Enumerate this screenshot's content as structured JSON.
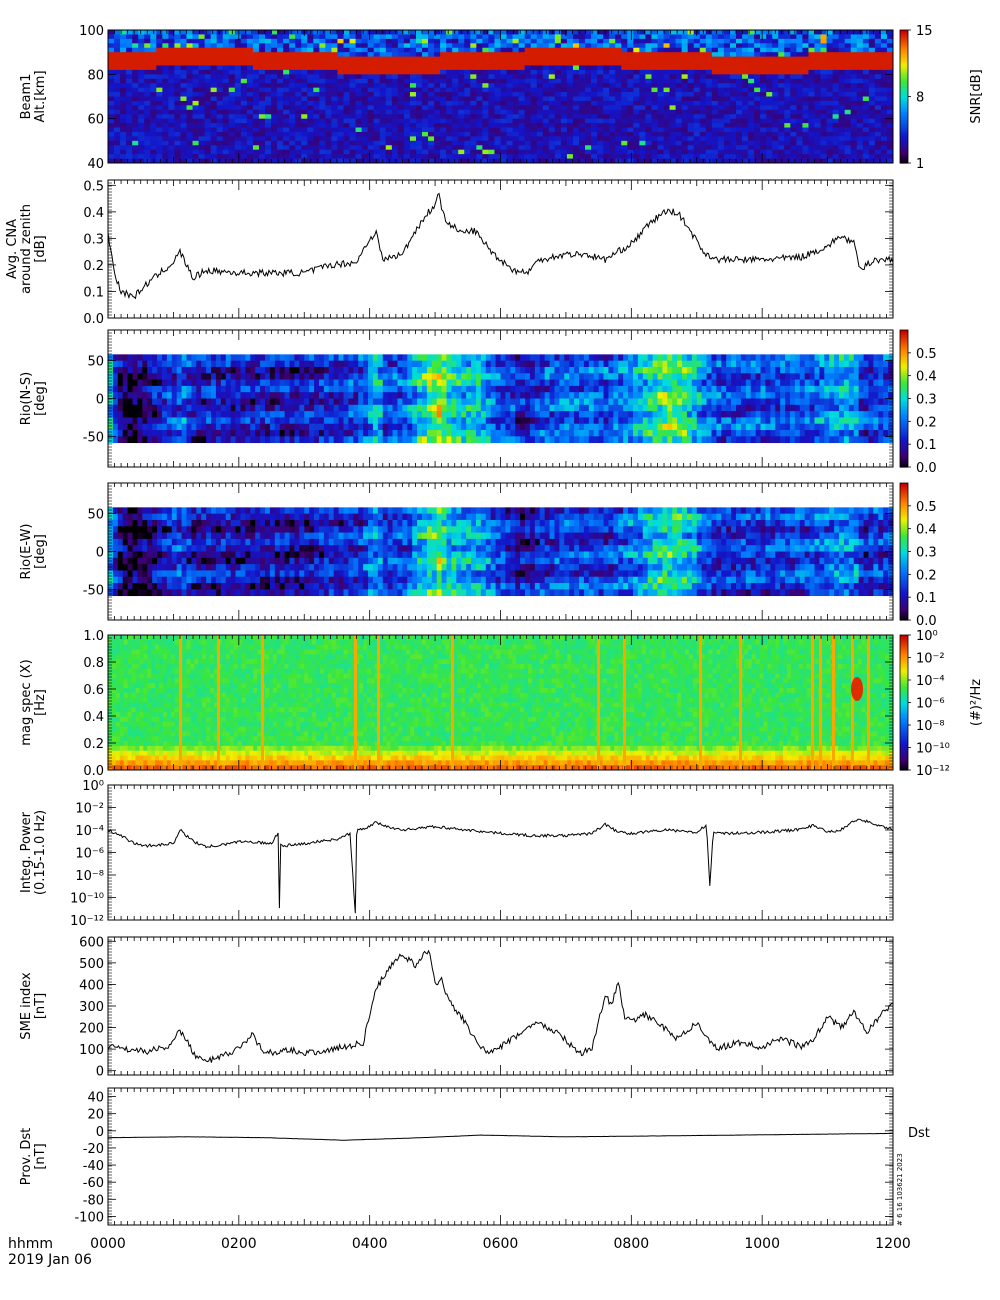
{
  "footer": {
    "xlabel": "hhmm",
    "date": "2019 Jan 06",
    "xticks": [
      "0000",
      "0200",
      "0400",
      "0600",
      "0800",
      "1000",
      "1200"
    ]
  },
  "stamp": "# 6 16 103621 2023",
  "colors": {
    "trace": "#000000",
    "mask": "#ffffff"
  },
  "chart_data": [
    {
      "id": "snr",
      "type": "heatmap",
      "ylabel": [
        "Beam1",
        "Alt.[km]"
      ],
      "yticks": [
        "100",
        "80",
        "60",
        "40"
      ],
      "ylim": [
        40,
        100
      ],
      "cbar_label": "SNR[dB]",
      "cbar_ticks": [
        "15",
        "8",
        "1"
      ],
      "crange": [
        1,
        15
      ],
      "layer_km": [
        82,
        90
      ]
    },
    {
      "id": "cna",
      "type": "line",
      "ylabel": [
        "Avg. CNA",
        "around zenith",
        "[dB]"
      ],
      "yticks": [
        "0.5",
        "0.4",
        "0.3",
        "0.2",
        "0.1",
        "0.0"
      ],
      "ylim": [
        0,
        0.52
      ],
      "x": [
        0,
        10,
        20,
        40,
        60,
        80,
        100,
        110,
        120,
        130,
        150,
        200,
        250,
        300,
        340,
        380,
        400,
        410,
        420,
        450,
        470,
        490,
        500,
        505,
        510,
        520,
        540,
        560,
        590,
        620,
        640,
        660,
        700,
        730,
        760,
        800,
        830,
        850,
        870,
        890,
        910,
        930,
        1000,
        1060,
        1100,
        1120,
        1140,
        1150,
        1170,
        1200
      ],
      "values": [
        0.32,
        0.17,
        0.1,
        0.08,
        0.13,
        0.17,
        0.21,
        0.25,
        0.2,
        0.15,
        0.18,
        0.17,
        0.17,
        0.17,
        0.2,
        0.21,
        0.3,
        0.32,
        0.22,
        0.24,
        0.33,
        0.4,
        0.42,
        0.49,
        0.4,
        0.36,
        0.32,
        0.33,
        0.24,
        0.18,
        0.17,
        0.22,
        0.24,
        0.24,
        0.22,
        0.28,
        0.36,
        0.4,
        0.4,
        0.33,
        0.25,
        0.22,
        0.22,
        0.23,
        0.27,
        0.31,
        0.28,
        0.18,
        0.22,
        0.22
      ]
    },
    {
      "id": "rio_ns",
      "type": "heatmap",
      "ylabel": [
        "Rio(N-S)",
        "[deg]"
      ],
      "yticks": [
        "50",
        "0",
        "-50"
      ],
      "ylim": [
        -90,
        90
      ],
      "cbar_ticks": [
        "0.5",
        "0.4",
        "0.3",
        "0.2",
        "0.1",
        "0.0"
      ],
      "crange": [
        0,
        0.6
      ]
    },
    {
      "id": "rio_ew",
      "type": "heatmap",
      "ylabel": [
        "Rio(E-W)",
        "[deg]"
      ],
      "yticks": [
        "50",
        "0",
        "-50"
      ],
      "ylim": [
        -90,
        90
      ],
      "cbar_ticks": [
        "0.5",
        "0.4",
        "0.3",
        "0.2",
        "0.1",
        "0.0"
      ],
      "crange": [
        0,
        0.6
      ]
    },
    {
      "id": "magspec",
      "type": "heatmap",
      "ylabel": [
        "mag spec (X)",
        "[Hz]"
      ],
      "yticks": [
        "1.0",
        "0.8",
        "0.6",
        "0.4",
        "0.2",
        "0.0"
      ],
      "ylim": [
        0,
        1
      ],
      "cbar_label": "(#)²/Hz",
      "cbar_ticks": [
        "10⁰",
        "10⁻²",
        "10⁻⁴",
        "10⁻⁶",
        "10⁻⁸",
        "10⁻¹⁰",
        "10⁻¹²"
      ],
      "crange": [
        -12,
        0
      ],
      "cscale": "log"
    },
    {
      "id": "power",
      "type": "line",
      "ylabel": [
        "Integ. Power",
        "(0.15-1.0 Hz)"
      ],
      "yticks": [
        "10⁰",
        "10⁻²",
        "10⁻⁴",
        "10⁻⁶",
        "10⁻⁸",
        "10⁻¹⁰",
        "10⁻¹²"
      ],
      "ylim": [
        -12,
        0
      ],
      "yscale": "log",
      "x": [
        0,
        20,
        40,
        60,
        100,
        110,
        130,
        150,
        180,
        200,
        250,
        260,
        262,
        264,
        270,
        300,
        350,
        370,
        378,
        380,
        382,
        400,
        410,
        420,
        450,
        500,
        550,
        600,
        650,
        700,
        740,
        760,
        780,
        800,
        850,
        900,
        915,
        920,
        925,
        950,
        1000,
        1050,
        1080,
        1100,
        1120,
        1140,
        1150,
        1170,
        1200
      ],
      "values": [
        -4,
        -4.5,
        -5.2,
        -5.4,
        -5.2,
        -4,
        -5,
        -5.5,
        -5.3,
        -5,
        -5.2,
        -4.2,
        -11,
        -5.3,
        -5.4,
        -5.2,
        -4.8,
        -4.3,
        -11.5,
        -4.5,
        -4,
        -3.7,
        -3.3,
        -3.6,
        -4,
        -3.7,
        -4,
        -4.3,
        -4.5,
        -4.5,
        -4.3,
        -3.5,
        -4.2,
        -4.3,
        -4,
        -4.2,
        -3.5,
        -9,
        -4.3,
        -4.3,
        -4.2,
        -4,
        -3.6,
        -4.2,
        -4,
        -3.2,
        -3,
        -3.5,
        -4
      ]
    },
    {
      "id": "sme",
      "type": "line",
      "ylabel": [
        "SME index",
        "[nT]"
      ],
      "yticks": [
        "600",
        "500",
        "400",
        "300",
        "200",
        "100",
        "0"
      ],
      "ylim": [
        -20,
        620
      ],
      "x": [
        0,
        30,
        60,
        90,
        110,
        120,
        130,
        150,
        170,
        200,
        220,
        240,
        260,
        280,
        300,
        330,
        360,
        390,
        410,
        430,
        450,
        470,
        490,
        500,
        510,
        520,
        540,
        560,
        580,
        600,
        620,
        640,
        660,
        690,
        720,
        740,
        760,
        770,
        780,
        790,
        800,
        820,
        850,
        870,
        900,
        930,
        960,
        1000,
        1030,
        1060,
        1080,
        1100,
        1120,
        1140,
        1160,
        1180,
        1200
      ],
      "values": [
        110,
        100,
        90,
        110,
        180,
        150,
        80,
        40,
        60,
        100,
        170,
        80,
        90,
        100,
        80,
        90,
        110,
        130,
        380,
        480,
        540,
        490,
        560,
        400,
        420,
        330,
        250,
        150,
        80,
        110,
        150,
        200,
        220,
        170,
        80,
        100,
        350,
        300,
        420,
        240,
        230,
        260,
        200,
        150,
        220,
        100,
        130,
        110,
        150,
        110,
        150,
        250,
        200,
        270,
        180,
        250,
        320
      ]
    },
    {
      "id": "dst",
      "type": "line",
      "ylabel": [
        "Prov. Dst",
        "[nT]"
      ],
      "yticks": [
        "40",
        "20",
        "0",
        "-20",
        "-40",
        "-60",
        "-80",
        "-100"
      ],
      "ylim": [
        -110,
        50
      ],
      "legend": "Dst",
      "x": [
        0,
        120,
        240,
        360,
        480,
        570,
        700,
        840,
        960,
        1080,
        1200
      ],
      "values": [
        -8,
        -7,
        -8,
        -11,
        -8,
        -5,
        -7,
        -6,
        -5,
        -4,
        -3
      ]
    }
  ]
}
